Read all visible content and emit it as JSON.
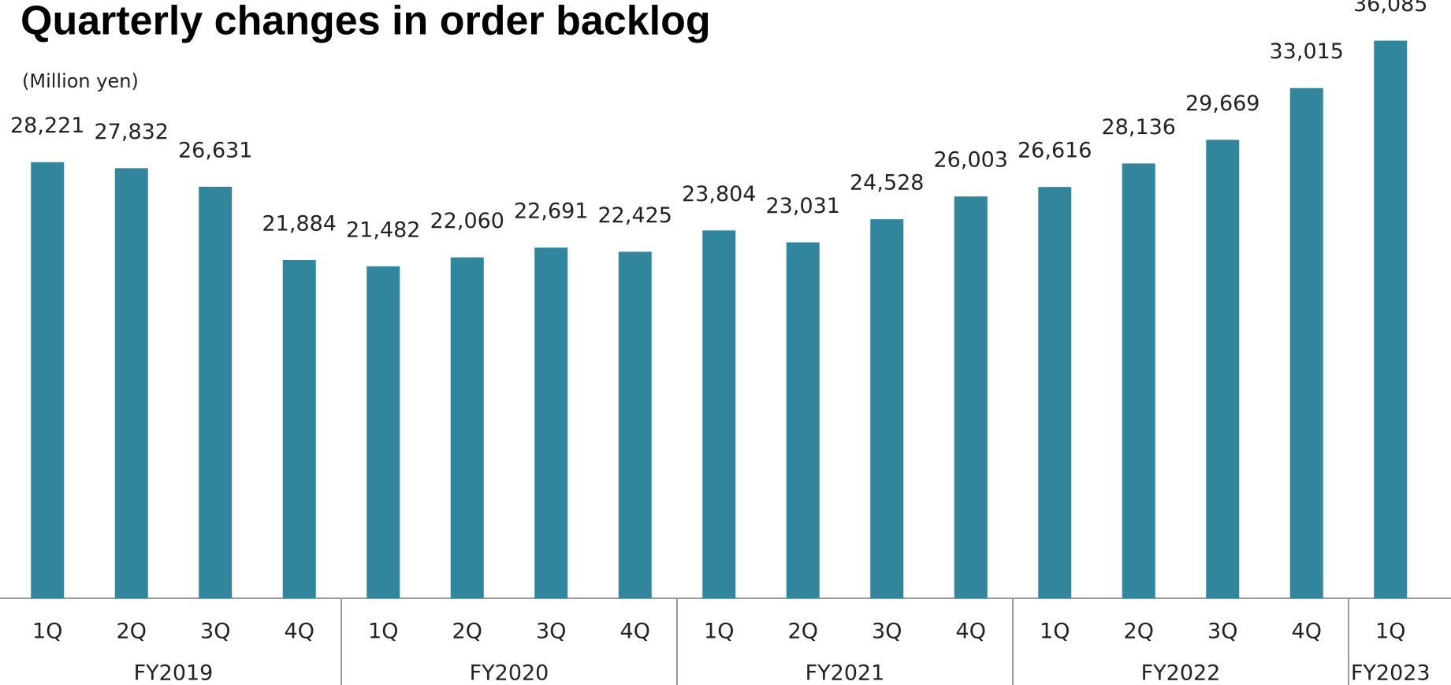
{
  "chart_data": {
    "type": "bar",
    "title": "Quarterly changes in order backlog",
    "subtitle": "(Million yen)",
    "groups": [
      {
        "name": "FY2019",
        "categories": [
          "1Q",
          "2Q",
          "3Q",
          "4Q"
        ]
      },
      {
        "name": "FY2020",
        "categories": [
          "1Q",
          "2Q",
          "3Q",
          "4Q"
        ]
      },
      {
        "name": "FY2021",
        "categories": [
          "1Q",
          "2Q",
          "3Q",
          "4Q"
        ]
      },
      {
        "name": "FY2022",
        "categories": [
          "1Q",
          "2Q",
          "3Q",
          "4Q"
        ]
      },
      {
        "name": "FY2023",
        "categories": [
          "1Q"
        ]
      }
    ],
    "values": [
      28221,
      27832,
      26631,
      21884,
      21482,
      22060,
      22691,
      22425,
      23804,
      23031,
      24528,
      26003,
      26616,
      28136,
      29669,
      33015,
      36085
    ],
    "value_labels": [
      "28,221",
      "27,832",
      "26,631",
      "21,884",
      "21,482",
      "22,060",
      "22,691",
      "22,425",
      "23,804",
      "23,031",
      "24,528",
      "26,003",
      "26,616",
      "28,136",
      "29,669",
      "33,015",
      "36,085"
    ],
    "color": "#31869e",
    "ylim": [
      0,
      38000
    ]
  }
}
